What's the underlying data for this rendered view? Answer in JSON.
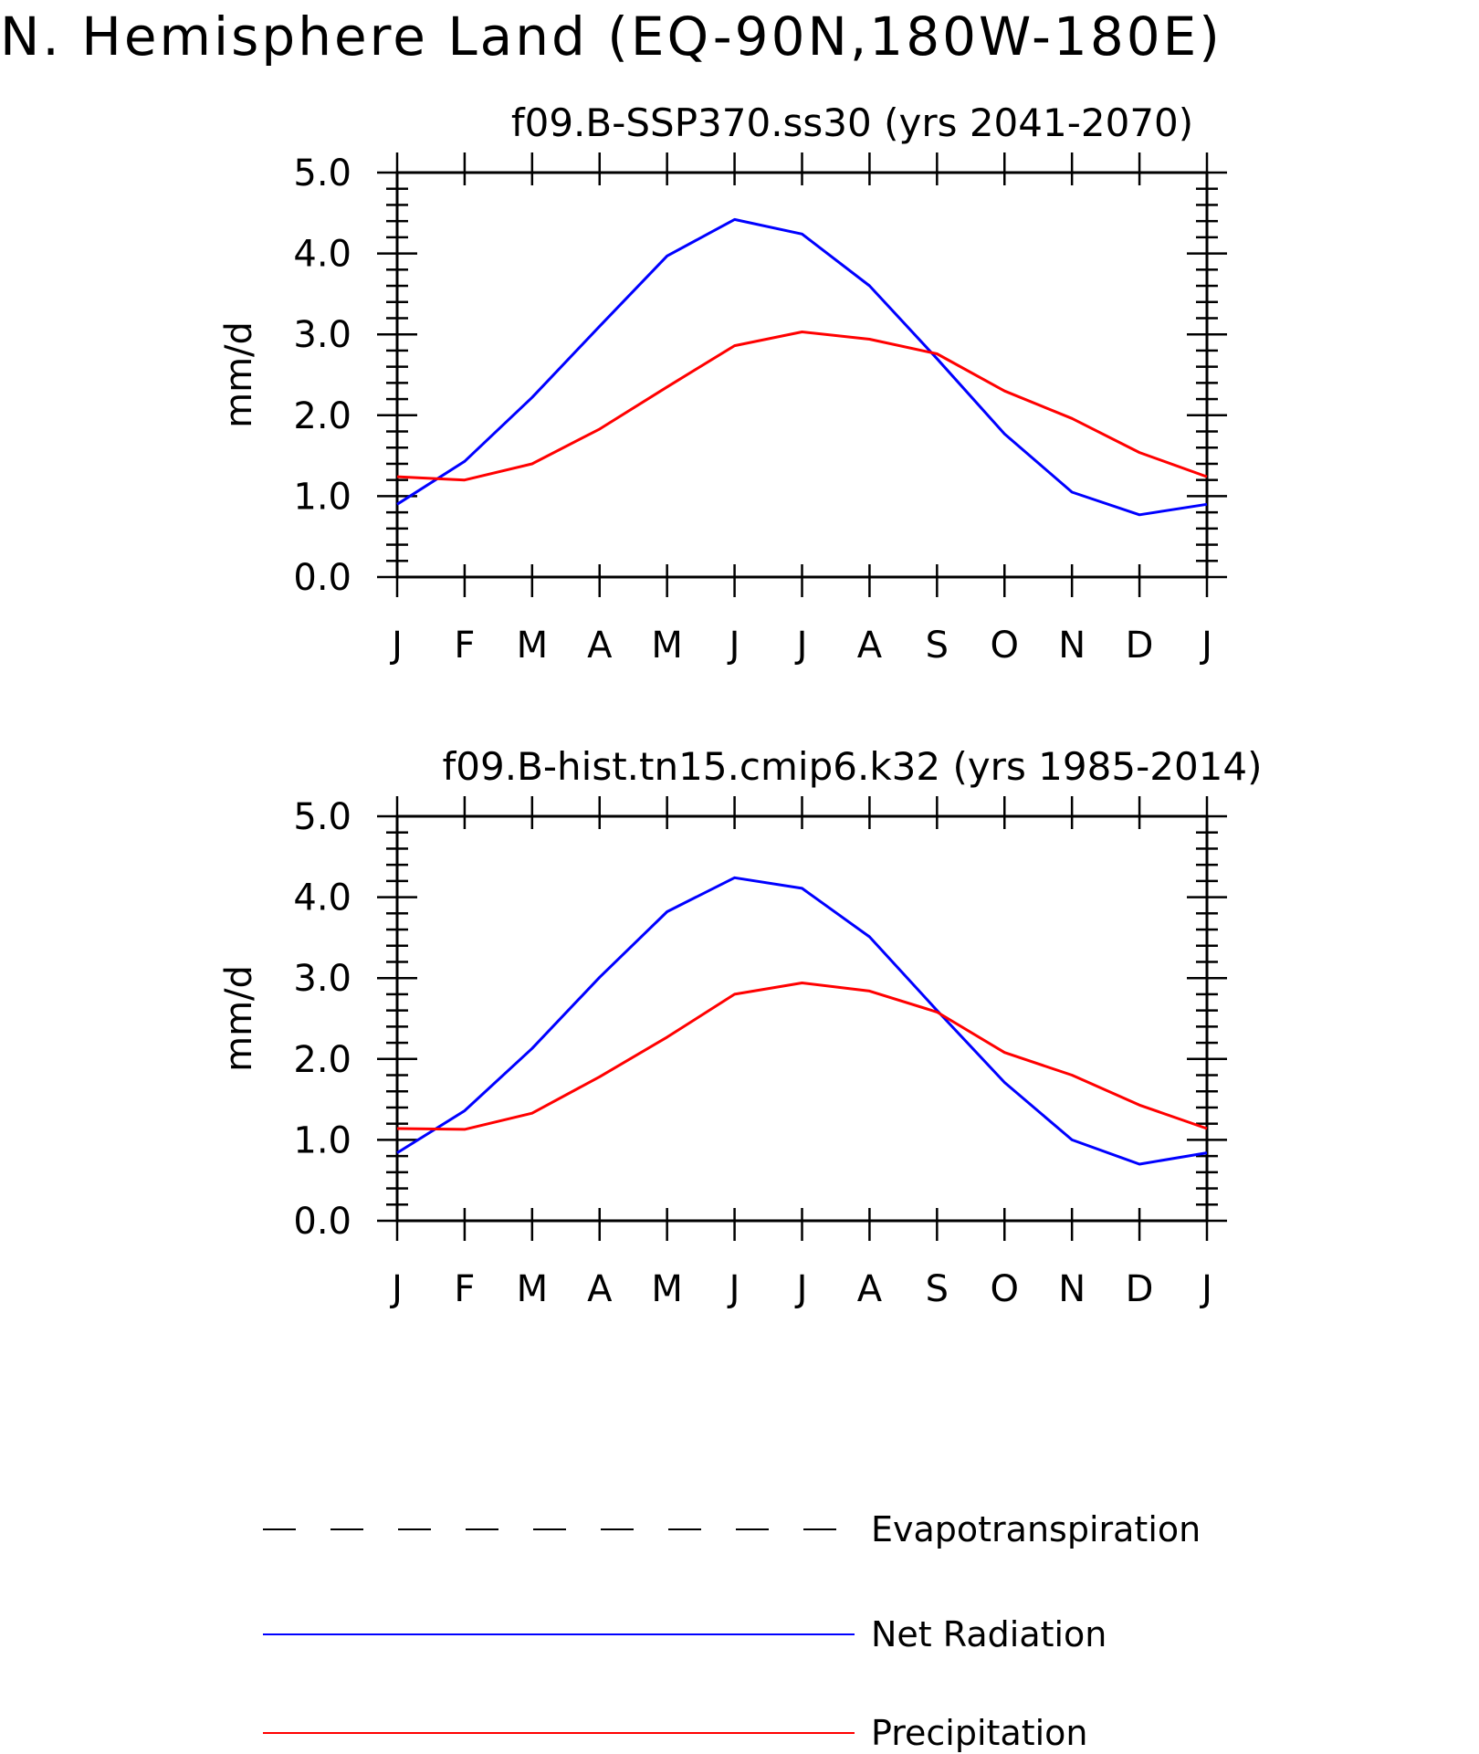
{
  "title": "N. Hemisphere Land (EQ-90N,180W-180E)",
  "colors": {
    "Evapotranspiration": "#000000",
    "Net Radiation": "#0000ff",
    "Precipitation": "#ff0000"
  },
  "legend": [
    {
      "name": "Evapotranspiration",
      "style": "dashed"
    },
    {
      "name": "Net Radiation",
      "style": "solid"
    },
    {
      "name": "Precipitation",
      "style": "solid"
    }
  ],
  "chart_data": [
    {
      "type": "line",
      "title": "f09.B-SSP370.ss30 (yrs 2041-2070)",
      "ylabel": "mm/d",
      "xlabel": "",
      "categories": [
        "J",
        "F",
        "M",
        "A",
        "M",
        "J",
        "J",
        "A",
        "S",
        "O",
        "N",
        "D",
        "J"
      ],
      "yticks": [
        "0.0",
        "1.0",
        "2.0",
        "3.0",
        "4.0",
        "5.0"
      ],
      "ylim": [
        0,
        5
      ],
      "grid": false,
      "series": [
        {
          "name": "Net Radiation",
          "values": [
            0.9,
            1.43,
            2.22,
            3.1,
            3.97,
            4.42,
            4.24,
            3.6,
            2.7,
            1.77,
            1.05,
            0.77,
            0.9
          ]
        },
        {
          "name": "Precipitation",
          "values": [
            1.24,
            1.2,
            1.4,
            1.83,
            2.35,
            2.86,
            3.03,
            2.94,
            2.76,
            2.3,
            1.96,
            1.54,
            1.24
          ]
        }
      ]
    },
    {
      "type": "line",
      "title": "f09.B-hist.tn15.cmip6.k32 (yrs 1985-2014)",
      "ylabel": "mm/d",
      "xlabel": "",
      "categories": [
        "J",
        "F",
        "M",
        "A",
        "M",
        "J",
        "J",
        "A",
        "S",
        "O",
        "N",
        "D",
        "J"
      ],
      "yticks": [
        "0.0",
        "1.0",
        "2.0",
        "3.0",
        "4.0",
        "5.0"
      ],
      "ylim": [
        0,
        5
      ],
      "grid": false,
      "series": [
        {
          "name": "Net Radiation",
          "values": [
            0.84,
            1.36,
            2.13,
            3.01,
            3.82,
            4.24,
            4.11,
            3.51,
            2.6,
            1.71,
            1.0,
            0.7,
            0.84
          ]
        },
        {
          "name": "Precipitation",
          "values": [
            1.14,
            1.13,
            1.33,
            1.78,
            2.27,
            2.8,
            2.94,
            2.84,
            2.58,
            2.08,
            1.8,
            1.43,
            1.14
          ]
        }
      ]
    }
  ]
}
